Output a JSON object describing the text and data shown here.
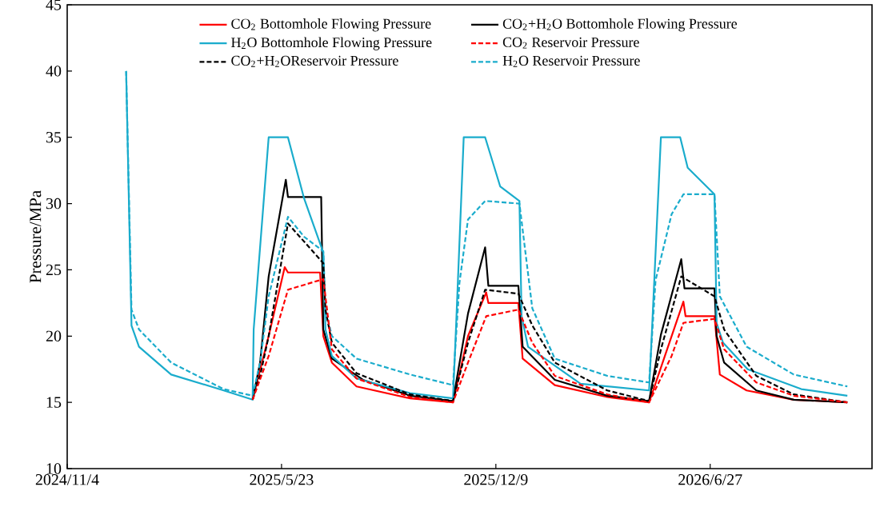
{
  "chart_data": {
    "type": "line",
    "ylabel": "Pressure/MPa",
    "xlim": [
      "2024-11-04",
      "2026-11-25"
    ],
    "ylim": [
      10,
      45
    ],
    "xticks": [
      {
        "value": "2024-11-04",
        "label": "2024/11/4"
      },
      {
        "value": "2025-05-23",
        "label": "2025/5/23"
      },
      {
        "value": "2025-12-09",
        "label": "2025/12/9"
      },
      {
        "value": "2026-06-27",
        "label": "2026/6/27"
      }
    ],
    "yticks": [
      10,
      15,
      20,
      25,
      30,
      35,
      40,
      45
    ],
    "grid": false,
    "legend": "top",
    "marker": "none",
    "series": [
      {
        "name": "CO$_{2}$ Bottomhole Flowing Pressure",
        "color": "#ff0000",
        "line_style": "solid",
        "x": [
          "2025-04-26",
          "2025-05-11",
          "2025-05-26",
          "2025-05-29",
          "2025-06-28",
          "2025-07-01",
          "2025-07-09",
          "2025-08-01",
          "2025-09-20",
          "2025-10-30",
          "2025-11-13",
          "2025-11-30",
          "2025-12-02",
          "2025-12-30",
          "2026-01-03",
          "2026-02-02",
          "2026-03-23",
          "2026-05-01",
          "2026-05-22",
          "2026-06-02",
          "2026-06-04",
          "2026-07-01",
          "2026-07-06",
          "2026-07-31",
          "2026-09-13",
          "2026-11-02"
        ],
        "values": [
          15.2,
          20,
          25.2,
          24.8,
          24.8,
          20,
          18,
          16.2,
          15.3,
          15.0,
          20,
          23.3,
          22.5,
          22.5,
          18.3,
          16.3,
          15.4,
          15.0,
          20,
          22.6,
          21.5,
          21.5,
          17.1,
          15.9,
          15.2,
          15.0
        ]
      },
      {
        "name": "CO$_{2}$+H$_{2}$O Bottomhole Flowing Pressure",
        "color": "#000000",
        "line_style": "solid",
        "x": [
          "2025-04-26",
          "2025-05-03",
          "2025-05-11",
          "2025-05-27",
          "2025-05-29",
          "2025-06-29",
          "2025-07-01",
          "2025-07-09",
          "2025-08-07",
          "2025-09-20",
          "2025-10-30",
          "2025-11-13",
          "2025-11-29",
          "2025-12-02",
          "2025-12-30",
          "2026-01-03",
          "2026-02-02",
          "2026-03-23",
          "2026-05-01",
          "2026-05-12",
          "2026-05-31",
          "2026-06-03",
          "2026-07-01",
          "2026-07-03",
          "2026-07-10",
          "2026-08-09",
          "2026-09-13",
          "2026-11-02"
        ],
        "values": [
          15.2,
          18,
          24.5,
          31.8,
          30.5,
          30.5,
          20.5,
          18.3,
          16.7,
          15.5,
          15.1,
          21.7,
          26.7,
          23.8,
          23.8,
          19.2,
          16.7,
          15.5,
          15.1,
          20.1,
          25.8,
          23.6,
          23.6,
          20,
          18,
          15.9,
          15.2,
          15.0
        ]
      },
      {
        "name": "H$_{2}$O Bottomhole Flowing Pressure",
        "color": "#1aaccc",
        "line_style": "solid",
        "x": [
          "2024-12-29",
          "2025-01-03",
          "2025-01-10",
          "2025-02-09",
          "2025-03-30",
          "2025-04-26",
          "2025-04-27",
          "2025-05-11",
          "2025-05-29",
          "2025-06-13",
          "2025-07-01",
          "2025-07-03",
          "2025-07-09",
          "2025-08-01",
          "2025-09-20",
          "2025-10-30",
          "2025-11-02",
          "2025-11-09",
          "2025-11-29",
          "2025-12-13",
          "2025-12-31",
          "2026-01-02",
          "2026-01-08",
          "2026-02-26",
          "2026-05-01",
          "2026-05-04",
          "2026-05-12",
          "2026-05-30",
          "2026-06-06",
          "2026-07-01",
          "2026-07-03",
          "2026-07-09",
          "2026-08-01",
          "2026-09-20",
          "2026-11-02"
        ],
        "values": [
          40,
          20.8,
          19.2,
          17.1,
          15.9,
          15.2,
          20.5,
          35,
          35,
          30.4,
          26.3,
          20.5,
          18.5,
          16.8,
          15.7,
          15.3,
          21,
          35,
          35,
          31.3,
          30.2,
          21.5,
          19.2,
          16.4,
          15.9,
          21,
          35,
          35,
          32.7,
          30.7,
          21,
          19.5,
          17.5,
          16.0,
          15.5
        ]
      },
      {
        "name": "CO$_{2}$ Reservoir Pressure",
        "color": "#ff0000",
        "line_style": "dashed",
        "x": [
          "2025-04-26",
          "2025-05-11",
          "2025-05-29",
          "2025-07-01",
          "2025-07-09",
          "2025-08-01",
          "2025-09-20",
          "2025-10-30",
          "2025-11-13",
          "2025-11-30",
          "2025-12-30",
          "2026-01-12",
          "2026-02-02",
          "2026-03-23",
          "2026-05-01",
          "2026-05-22",
          "2026-06-02",
          "2026-07-01",
          "2026-07-10",
          "2026-08-09",
          "2026-09-13",
          "2026-11-02"
        ],
        "values": [
          15.2,
          18.5,
          23.5,
          24.3,
          19,
          16.8,
          15.4,
          15.0,
          18,
          21.5,
          22.0,
          19.5,
          17,
          15.6,
          15.0,
          18.5,
          21,
          21.3,
          19,
          16.5,
          15.5,
          15.0
        ]
      },
      {
        "name": "CO$_{2}$+H$_{2}$OReservoir Pressure",
        "color": "#000000",
        "line_style": "dashed",
        "x": [
          "2025-04-26",
          "2025-05-03",
          "2025-05-11",
          "2025-05-29",
          "2025-07-01",
          "2025-07-03",
          "2025-07-09",
          "2025-08-01",
          "2025-09-20",
          "2025-10-30",
          "2025-11-13",
          "2025-11-29",
          "2025-12-30",
          "2026-01-12",
          "2026-02-02",
          "2026-03-23",
          "2026-05-01",
          "2026-05-12",
          "2026-05-31",
          "2026-07-01",
          "2026-07-10",
          "2026-08-09",
          "2026-09-13",
          "2026-11-02"
        ],
        "values": [
          15.2,
          17,
          20,
          28.5,
          25.5,
          22,
          19.5,
          17.2,
          15.6,
          15.1,
          19.5,
          23.5,
          23.2,
          20.8,
          18,
          15.9,
          15.1,
          19,
          24.5,
          23,
          20.5,
          17,
          15.6,
          15.0
        ]
      },
      {
        "name": "H$_{2}$O Reservoir Pressure",
        "color": "#1aaccc",
        "line_style": "dashed",
        "x": [
          "2024-12-29",
          "2025-01-03",
          "2025-01-10",
          "2025-02-09",
          "2025-03-30",
          "2025-04-26",
          "2025-05-03",
          "2025-05-11",
          "2025-05-29",
          "2025-06-13",
          "2025-07-01",
          "2025-07-03",
          "2025-07-09",
          "2025-08-01",
          "2025-09-20",
          "2025-10-30",
          "2025-11-05",
          "2025-11-13",
          "2025-11-29",
          "2025-12-31",
          "2026-01-12",
          "2026-02-02",
          "2026-03-23",
          "2026-05-01",
          "2026-05-07",
          "2026-05-22",
          "2026-06-02",
          "2026-07-01",
          "2026-07-06",
          "2026-07-31",
          "2026-09-13",
          "2026-11-02"
        ],
        "values": [
          40,
          22,
          20.5,
          18,
          16,
          15.5,
          18,
          23,
          29,
          27.5,
          26.4,
          22,
          20,
          18.3,
          17.1,
          16.3,
          24,
          28.8,
          30.2,
          30,
          22.1,
          18.3,
          17,
          16.5,
          24.2,
          29.2,
          30.7,
          30.7,
          23,
          19.2,
          17.1,
          16.2
        ]
      }
    ]
  }
}
